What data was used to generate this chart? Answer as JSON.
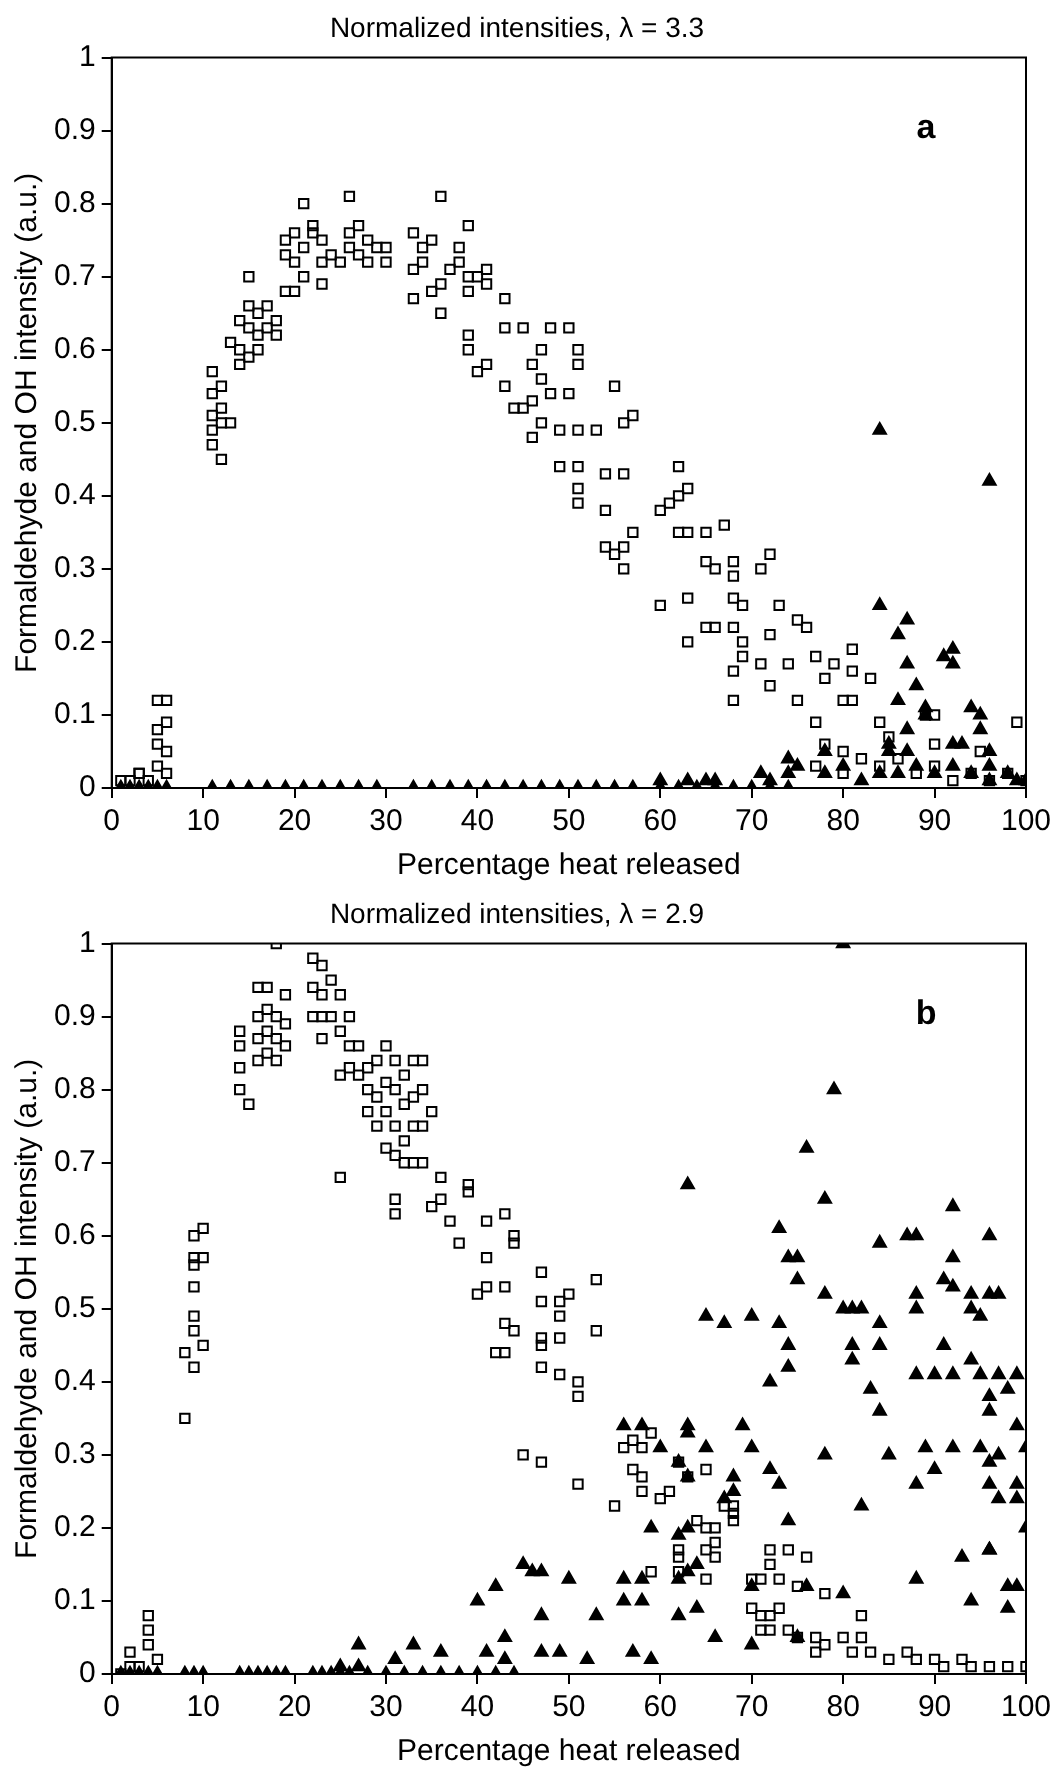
{
  "chart_data": [
    {
      "type": "scatter",
      "title": "Normalized intensities, λ = 3.3",
      "xlabel": "Percentage heat released",
      "ylabel": "Formaldehyde and OH intensity (a.u.)",
      "xlim": [
        0,
        100
      ],
      "ylim": [
        0,
        1
      ],
      "xticks": [
        0,
        10,
        20,
        30,
        40,
        50,
        60,
        70,
        80,
        90,
        100
      ],
      "yticks": [
        0,
        0.1,
        0.2,
        0.3,
        0.4,
        0.5,
        0.6,
        0.7,
        0.8,
        0.9,
        1
      ],
      "annotations": [
        "a"
      ],
      "series": [
        {
          "marker": "square",
          "color": "#000000",
          "x": [
            1,
            2,
            3,
            3,
            4,
            5,
            5,
            5,
            5,
            6,
            6,
            6,
            6,
            11,
            11,
            11,
            11,
            11,
            12,
            12,
            12,
            12,
            13,
            13,
            14,
            14,
            14,
            15,
            15,
            15,
            15,
            16,
            16,
            16,
            17,
            17,
            18,
            18,
            19,
            19,
            19,
            20,
            20,
            20,
            21,
            21,
            21,
            22,
            22,
            23,
            23,
            23,
            24,
            25,
            26,
            26,
            26,
            27,
            27,
            28,
            28,
            29,
            30,
            30,
            33,
            33,
            33,
            34,
            34,
            35,
            35,
            36,
            36,
            36,
            37,
            38,
            38,
            39,
            39,
            39,
            39,
            39,
            40,
            40,
            41,
            41,
            41,
            43,
            43,
            43,
            44,
            45,
            47,
            48,
            50,
            51,
            51,
            46,
            47,
            46,
            48,
            50,
            45,
            47,
            49,
            51,
            53,
            46,
            49,
            51,
            54,
            56,
            51,
            51,
            54,
            55,
            56,
            57,
            54,
            55,
            56,
            56,
            57,
            62,
            62,
            63,
            60,
            61,
            62,
            63,
            65,
            67,
            63,
            65,
            66,
            68,
            68,
            71,
            72,
            60,
            68,
            69,
            73,
            63,
            65,
            66,
            68,
            69,
            72,
            75,
            76,
            68,
            69,
            71,
            74,
            68,
            72,
            77,
            79,
            81,
            81,
            83,
            78,
            75,
            80,
            81,
            89,
            90,
            84,
            99,
            77,
            78,
            80,
            82,
            84,
            86,
            88,
            90,
            92,
            94,
            96,
            98,
            100,
            85,
            90,
            95,
            80,
            77
          ],
          "values": [
            0.01,
            0.01,
            0.02,
            0.02,
            0.01,
            0.12,
            0.08,
            0.06,
            0.03,
            0.12,
            0.09,
            0.05,
            0.02,
            0.57,
            0.54,
            0.51,
            0.49,
            0.47,
            0.55,
            0.52,
            0.5,
            0.45,
            0.5,
            0.61,
            0.64,
            0.6,
            0.58,
            0.7,
            0.66,
            0.63,
            0.59,
            0.65,
            0.62,
            0.6,
            0.66,
            0.63,
            0.64,
            0.62,
            0.75,
            0.73,
            0.68,
            0.76,
            0.72,
            0.68,
            0.8,
            0.74,
            0.7,
            0.77,
            0.76,
            0.75,
            0.72,
            0.69,
            0.73,
            0.72,
            0.81,
            0.76,
            0.74,
            0.77,
            0.73,
            0.75,
            0.72,
            0.74,
            0.74,
            0.72,
            0.76,
            0.71,
            0.67,
            0.74,
            0.72,
            0.75,
            0.68,
            0.81,
            0.69,
            0.65,
            0.71,
            0.74,
            0.72,
            0.77,
            0.7,
            0.68,
            0.62,
            0.6,
            0.57,
            0.7,
            0.71,
            0.58,
            0.69,
            0.67,
            0.63,
            0.55,
            0.52,
            0.63,
            0.6,
            0.63,
            0.63,
            0.6,
            0.58,
            0.58,
            0.56,
            0.53,
            0.54,
            0.54,
            0.52,
            0.5,
            0.49,
            0.49,
            0.49,
            0.48,
            0.44,
            0.44,
            0.43,
            0.43,
            0.41,
            0.39,
            0.38,
            0.55,
            0.5,
            0.51,
            0.33,
            0.32,
            0.3,
            0.33,
            0.35,
            0.44,
            0.4,
            0.41,
            0.38,
            0.39,
            0.35,
            0.35,
            0.35,
            0.36,
            0.26,
            0.31,
            0.3,
            0.31,
            0.29,
            0.3,
            0.32,
            0.25,
            0.26,
            0.25,
            0.25,
            0.2,
            0.22,
            0.22,
            0.22,
            0.2,
            0.21,
            0.23,
            0.22,
            0.16,
            0.18,
            0.17,
            0.17,
            0.12,
            0.14,
            0.18,
            0.17,
            0.19,
            0.16,
            0.15,
            0.15,
            0.12,
            0.12,
            0.12,
            0.1,
            0.1,
            0.09,
            0.09,
            0.09,
            0.06,
            0.05,
            0.04,
            0.03,
            0.04,
            0.02,
            0.03,
            0.01,
            0.02,
            0.01,
            0.02,
            0.01,
            0.07,
            0.06,
            0.05,
            0.02,
            0.03
          ]
        },
        {
          "marker": "triangle",
          "color": "#000000",
          "x": [
            1,
            2,
            3,
            4,
            5,
            6,
            11,
            13,
            15,
            17,
            19,
            21,
            23,
            25,
            27,
            29,
            33,
            35,
            37,
            39,
            41,
            43,
            45,
            47,
            49,
            51,
            53,
            55,
            57,
            60,
            62,
            64,
            66,
            68,
            70,
            72,
            74,
            84,
            96,
            84,
            87,
            86,
            87,
            92,
            91,
            92,
            86,
            88,
            89,
            89,
            94,
            95,
            85,
            87,
            92,
            93,
            96,
            96,
            99,
            74,
            74,
            63,
            65,
            66,
            60,
            75,
            71,
            72,
            78,
            78,
            80,
            82,
            84,
            86,
            88,
            90,
            92,
            94,
            96,
            98,
            100,
            85,
            87,
            95
          ],
          "values": [
            0,
            0,
            0,
            0,
            0,
            0,
            0,
            0,
            0,
            0,
            0,
            0,
            0,
            0,
            0,
            0,
            0,
            0,
            0,
            0,
            0,
            0,
            0,
            0,
            0,
            0,
            0,
            0,
            0,
            0,
            0,
            0,
            0,
            0,
            0,
            0,
            0,
            0.49,
            0.42,
            0.25,
            0.23,
            0.21,
            0.17,
            0.19,
            0.18,
            0.17,
            0.12,
            0.14,
            0.11,
            0.1,
            0.11,
            0.1,
            0.05,
            0.05,
            0.06,
            0.06,
            0.05,
            0.03,
            0.01,
            0.04,
            0.02,
            0.01,
            0.01,
            0.01,
            0.01,
            0.03,
            0.02,
            0.01,
            0.05,
            0.02,
            0.03,
            0.01,
            0.02,
            0.02,
            0.03,
            0.02,
            0.03,
            0.02,
            0.01,
            0.02,
            0.01,
            0.06,
            0.08,
            0.08
          ]
        }
      ]
    },
    {
      "type": "scatter",
      "title": "Normalized intensities, λ = 2.9",
      "xlabel": "Percentage heat released",
      "ylabel": "Formaldehyde and OH intensity (a.u.)",
      "xlim": [
        0,
        100
      ],
      "ylim": [
        0,
        1
      ],
      "xticks": [
        0,
        10,
        20,
        30,
        40,
        50,
        60,
        70,
        80,
        90,
        100
      ],
      "yticks": [
        0,
        0.1,
        0.2,
        0.3,
        0.4,
        0.5,
        0.6,
        0.7,
        0.8,
        0.9,
        1
      ],
      "annotations": [
        "b"
      ],
      "series": [
        {
          "marker": "square",
          "color": "#000000",
          "x": [
            2,
            2,
            4,
            4,
            5,
            3,
            4,
            8,
            8,
            9,
            9,
            9,
            9,
            9,
            9,
            10,
            10,
            10,
            9,
            14,
            14,
            14,
            14,
            15,
            16,
            16,
            16,
            16,
            17,
            17,
            17,
            17,
            18,
            18,
            18,
            18,
            19,
            19,
            19,
            22,
            22,
            22,
            23,
            23,
            23,
            23,
            24,
            24,
            25,
            25,
            25,
            25,
            26,
            26,
            26,
            27,
            27,
            28,
            28,
            28,
            29,
            29,
            29,
            30,
            30,
            30,
            30,
            31,
            31,
            31,
            31,
            31,
            31,
            32,
            32,
            32,
            32,
            33,
            33,
            33,
            33,
            34,
            34,
            34,
            34,
            35,
            35,
            36,
            36,
            37,
            39,
            39,
            38,
            40,
            41,
            41,
            41,
            42,
            43,
            43,
            43,
            43,
            44,
            44,
            47,
            47,
            50,
            49,
            49,
            49,
            47,
            53,
            44,
            47,
            47,
            49,
            51,
            51,
            45,
            47,
            51,
            53,
            55,
            56,
            57,
            58,
            59,
            57,
            58,
            58,
            60,
            61,
            62,
            63,
            64,
            65,
            66,
            68,
            66,
            65,
            66,
            62,
            62,
            62,
            59,
            65,
            68,
            68,
            65,
            67,
            72,
            74,
            76,
            72,
            71,
            70,
            73,
            75,
            78,
            70,
            71,
            72,
            73,
            71,
            72,
            74,
            75,
            77,
            78,
            80,
            82,
            82,
            81,
            83,
            85,
            87,
            88,
            90,
            91,
            93,
            94,
            96,
            98,
            100,
            77,
            1
          ],
          "values": [
            0.01,
            0.03,
            0.04,
            0.08,
            0.02,
            0.01,
            0.06,
            0.35,
            0.44,
            0.42,
            0.47,
            0.57,
            0.6,
            0.53,
            0.56,
            0.57,
            0.61,
            0.45,
            0.49,
            0.88,
            0.86,
            0.83,
            0.8,
            0.78,
            0.94,
            0.9,
            0.87,
            0.84,
            0.94,
            0.91,
            0.88,
            0.85,
            1,
            0.9,
            0.87,
            0.84,
            0.93,
            0.89,
            0.86,
            0.98,
            0.94,
            0.9,
            0.97,
            0.93,
            0.9,
            0.87,
            0.95,
            0.9,
            0.93,
            0.88,
            0.82,
            0.68,
            0.9,
            0.86,
            0.83,
            0.86,
            0.82,
            0.83,
            0.8,
            0.77,
            0.84,
            0.79,
            0.75,
            0.86,
            0.81,
            0.77,
            0.72,
            0.84,
            0.8,
            0.75,
            0.71,
            0.65,
            0.63,
            0.82,
            0.78,
            0.73,
            0.7,
            0.84,
            0.79,
            0.75,
            0.7,
            0.84,
            0.8,
            0.75,
            0.7,
            0.77,
            0.64,
            0.68,
            0.65,
            0.62,
            0.67,
            0.66,
            0.59,
            0.52,
            0.62,
            0.57,
            0.53,
            0.44,
            0.63,
            0.53,
            0.48,
            0.44,
            0.59,
            0.6,
            0.55,
            0.51,
            0.52,
            0.51,
            0.49,
            0.46,
            0.46,
            0.47,
            0.47,
            0.45,
            0.42,
            0.41,
            0.4,
            0.38,
            0.3,
            0.29,
            0.26,
            0.54,
            0.23,
            0.31,
            0.32,
            0.31,
            0.33,
            0.28,
            0.27,
            0.25,
            0.24,
            0.25,
            0.29,
            0.27,
            0.21,
            0.2,
            0.2,
            0.21,
            0.18,
            0.17,
            0.16,
            0.17,
            0.16,
            0.14,
            0.14,
            0.13,
            0.23,
            0.22,
            0.28,
            0.23,
            0.17,
            0.17,
            0.16,
            0.15,
            0.13,
            0.13,
            0.13,
            0.12,
            0.11,
            0.09,
            0.08,
            0.08,
            0.09,
            0.06,
            0.06,
            0.06,
            0.05,
            0.05,
            0.04,
            0.05,
            0.08,
            0.05,
            0.03,
            0.03,
            0.02,
            0.03,
            0.02,
            0.02,
            0.01,
            0.02,
            0.01,
            0.01,
            0.01,
            0.01,
            0.03,
            0
          ]
        },
        {
          "marker": "triangle",
          "color": "#000000",
          "x": [
            8,
            9,
            10,
            14,
            15,
            16,
            17,
            18,
            19,
            22,
            23,
            24,
            25,
            26,
            28,
            30,
            32,
            34,
            36,
            38,
            40,
            42,
            44,
            25,
            27,
            27,
            31,
            33,
            36,
            40,
            42,
            46,
            43,
            43,
            41,
            80,
            79,
            76,
            63,
            78,
            92,
            73,
            87,
            88,
            84,
            96,
            74,
            75,
            92,
            75,
            78,
            91,
            92,
            88,
            88,
            80,
            81,
            82,
            94,
            96,
            97,
            94,
            95,
            65,
            67,
            70,
            73,
            84,
            81,
            81,
            84,
            74,
            74,
            72,
            91,
            94,
            88,
            90,
            92,
            95,
            97,
            99,
            98,
            96,
            83,
            56,
            58,
            63,
            63,
            69,
            84,
            96,
            99,
            100,
            70,
            65,
            78,
            85,
            89,
            92,
            95,
            96,
            97,
            60,
            62,
            63,
            72,
            73,
            68,
            68,
            67,
            88,
            90,
            96,
            97,
            99,
            99,
            82,
            59,
            62,
            63,
            74,
            96,
            100,
            45,
            47,
            50,
            56,
            58,
            58,
            62,
            63,
            64,
            56,
            70,
            76,
            80,
            88,
            93,
            96,
            94,
            98,
            99,
            98,
            47,
            53,
            64,
            62,
            66,
            70,
            75,
            47,
            49,
            52,
            57,
            59,
            1,
            2,
            3,
            4,
            5
          ],
          "values": [
            0,
            0,
            0,
            0,
            0,
            0,
            0,
            0,
            0,
            0,
            0,
            0,
            0,
            0,
            0,
            0,
            0,
            0,
            0,
            0,
            0,
            0,
            0,
            0.01,
            0.01,
            0.04,
            0.02,
            0.04,
            0.03,
            0.1,
            0.12,
            0.14,
            0.02,
            0.05,
            0.03,
            1,
            0.8,
            0.72,
            0.67,
            0.65,
            0.64,
            0.61,
            0.6,
            0.6,
            0.59,
            0.6,
            0.57,
            0.57,
            0.57,
            0.54,
            0.52,
            0.54,
            0.53,
            0.52,
            0.5,
            0.5,
            0.5,
            0.5,
            0.52,
            0.52,
            0.52,
            0.5,
            0.49,
            0.49,
            0.48,
            0.49,
            0.48,
            0.48,
            0.45,
            0.43,
            0.45,
            0.45,
            0.42,
            0.4,
            0.45,
            0.43,
            0.41,
            0.41,
            0.41,
            0.41,
            0.41,
            0.41,
            0.39,
            0.38,
            0.39,
            0.34,
            0.34,
            0.34,
            0.33,
            0.34,
            0.36,
            0.36,
            0.34,
            0.31,
            0.31,
            0.31,
            0.3,
            0.3,
            0.31,
            0.31,
            0.31,
            0.29,
            0.3,
            0.31,
            0.29,
            0.27,
            0.28,
            0.26,
            0.27,
            0.25,
            0.24,
            0.26,
            0.28,
            0.26,
            0.24,
            0.26,
            0.24,
            0.23,
            0.2,
            0.19,
            0.2,
            0.21,
            0.17,
            0.2,
            0.15,
            0.14,
            0.13,
            0.13,
            0.13,
            0.1,
            0.13,
            0.14,
            0.15,
            0.1,
            0.12,
            0.12,
            0.11,
            0.13,
            0.16,
            0.17,
            0.1,
            0.12,
            0.12,
            0.09,
            0.08,
            0.08,
            0.09,
            0.08,
            0.05,
            0.04,
            0.05,
            0.03,
            0.03,
            0.02,
            0.03,
            0.02,
            0,
            0,
            0,
            0,
            0
          ]
        }
      ]
    }
  ]
}
